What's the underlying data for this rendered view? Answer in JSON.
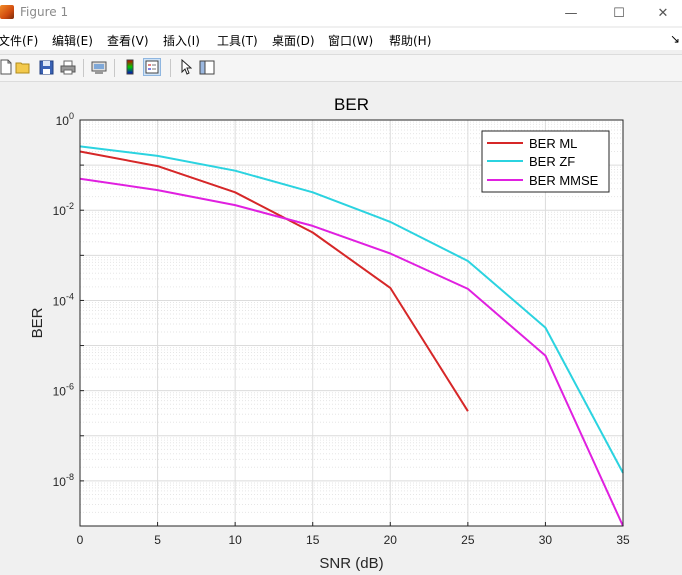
{
  "window": {
    "title": "Figure 1",
    "minimize": "—",
    "maximize": "☐",
    "close": "✕"
  },
  "menu": [
    {
      "label": "文件(F)"
    },
    {
      "label": "编辑(E)"
    },
    {
      "label": "查看(V)"
    },
    {
      "label": "插入(I)"
    },
    {
      "label": "工具(T)"
    },
    {
      "label": "桌面(D)"
    },
    {
      "label": "窗口(W)"
    },
    {
      "label": "帮助(H)"
    }
  ],
  "menu_end": "↘",
  "toolbar": [
    {
      "icon": "new-file-icon"
    },
    {
      "icon": "open-folder-icon"
    },
    {
      "icon": "save-icon"
    },
    {
      "icon": "print-icon"
    },
    {
      "icon": "print-preview-icon"
    },
    {
      "icon": "colorbar-icon"
    },
    {
      "icon": "legend-icon"
    },
    {
      "icon": "edit-plot-arrow-icon"
    },
    {
      "icon": "property-inspector-icon"
    }
  ],
  "chart_data": {
    "type": "line",
    "title": "BER",
    "xlabel": "SNR (dB)",
    "ylabel": "BER",
    "xlim": [
      0,
      35
    ],
    "ylim": [
      1e-09,
      1
    ],
    "yscale": "log",
    "grid": true,
    "minor_grid": true,
    "legend_position": "top-right",
    "xticks": [
      "0",
      "5",
      "10",
      "15",
      "20",
      "25",
      "30",
      "35"
    ],
    "yticks": [
      {
        "base": "10",
        "exp": "0"
      },
      {
        "base": "10",
        "exp": "-2"
      },
      {
        "base": "10",
        "exp": "-4"
      },
      {
        "base": "10",
        "exp": "-6"
      },
      {
        "base": "10",
        "exp": "-8"
      }
    ],
    "series": [
      {
        "name": "BER ML",
        "color": "#d62728",
        "x": [
          0,
          5,
          10,
          15,
          20,
          25
        ],
        "y": [
          0.2,
          0.095,
          0.025,
          0.0032,
          0.00019,
          3.5e-07
        ]
      },
      {
        "name": "BER ZF",
        "color": "#2bd3e0",
        "x": [
          0,
          5,
          10,
          15,
          20,
          25,
          30,
          35
        ],
        "y": [
          0.26,
          0.16,
          0.075,
          0.025,
          0.0055,
          0.00075,
          2.5e-05,
          1.5e-08
        ]
      },
      {
        "name": "BER MMSE",
        "color": "#e020e0",
        "x": [
          0,
          5,
          10,
          15,
          20,
          25,
          30,
          35
        ],
        "y": [
          0.05,
          0.028,
          0.013,
          0.0045,
          0.0011,
          0.00018,
          6e-06,
          1e-09
        ]
      }
    ]
  }
}
